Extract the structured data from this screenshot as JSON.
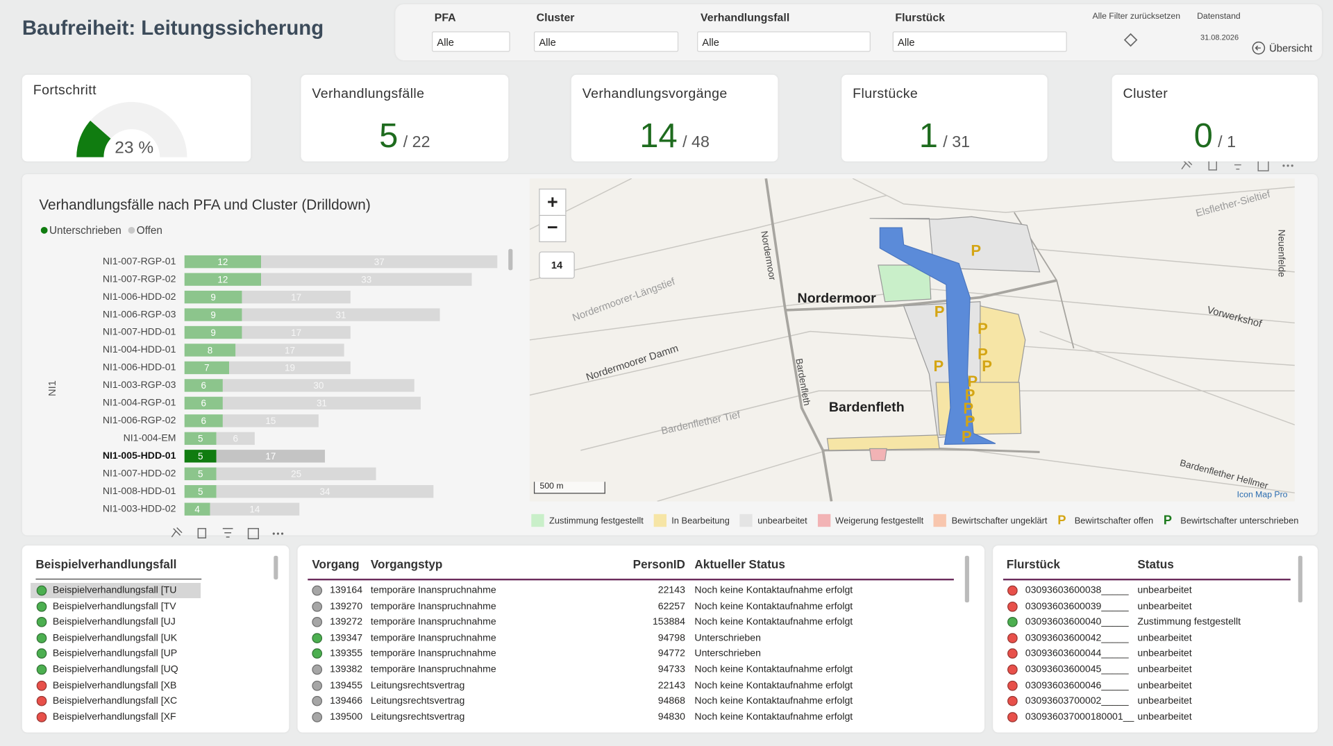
{
  "header": {
    "title": "Baufreiheit: Leitungssicherung"
  },
  "filters": [
    {
      "label": "PFA",
      "value": "Alle"
    },
    {
      "label": "Cluster",
      "value": "Alle"
    },
    {
      "label": "Verhandlungsfall",
      "value": "Alle"
    },
    {
      "label": "Flurstück",
      "value": "Alle"
    }
  ],
  "reset": {
    "label": "Alle Filter zurücksetzen"
  },
  "datenstand": {
    "label": "Datenstand",
    "value": "31.08.2026"
  },
  "overview": {
    "label": "Übersicht"
  },
  "gauge": {
    "title": "Fortschritt",
    "value": 23,
    "value_label": "23 %",
    "min": 0,
    "max": 100,
    "color": "#107c10"
  },
  "kpis": [
    {
      "title": "Verhandlungsfälle",
      "value": "5",
      "total": "/ 22"
    },
    {
      "title": "Verhandlungsvorgänge",
      "value": "14",
      "total": "/ 48"
    },
    {
      "title": "Flurstücke",
      "value": "1",
      "total": "/ 31"
    },
    {
      "title": "Cluster",
      "value": "0",
      "total": "/ 1"
    }
  ],
  "chart_data": {
    "type": "bar",
    "orientation": "horizontal",
    "stacked": true,
    "title": "Verhandlungsfälle nach PFA und Cluster (Drilldown)",
    "y_label": "NI1",
    "categories": [
      "NI1-007-RGP-01",
      "NI1-007-RGP-02",
      "NI1-006-HDD-02",
      "NI1-006-RGP-03",
      "NI1-007-HDD-01",
      "NI1-004-HDD-01",
      "NI1-006-HDD-01",
      "NI1-003-RGP-03",
      "NI1-004-RGP-01",
      "NI1-006-RGP-02",
      "NI1-004-EM",
      "NI1-005-HDD-01",
      "NI1-007-HDD-02",
      "NI1-008-HDD-01",
      "NI1-003-HDD-02"
    ],
    "series": [
      {
        "name": "Unterschrieben",
        "color": "#8cc58c",
        "legend_color": "#107c10",
        "values": [
          12,
          12,
          9,
          9,
          9,
          8,
          7,
          6,
          6,
          6,
          5,
          5,
          5,
          5,
          4
        ]
      },
      {
        "name": "Offen",
        "color": "#d9d9d9",
        "legend_color": "#c8c8c8",
        "values": [
          37,
          33,
          17,
          31,
          17,
          17,
          19,
          30,
          31,
          15,
          6,
          17,
          25,
          34,
          14
        ]
      }
    ],
    "selected_index": 11,
    "selected_colors": [
      "#107c10",
      "#c4c4c4"
    ]
  },
  "map": {
    "zoom_in": "+",
    "zoom_out": "−",
    "zoom": "14",
    "places": [
      "Nordermoor",
      "Bardenfleth",
      "Nordermoorer Damm",
      "Nordermoorer-Längstief",
      "Bardenflether Tief",
      "Elsflether-Sieltief",
      "Vorwerkshof",
      "Neuenfelde",
      "Bardenflether Hellmer",
      "Nordermoor",
      "Bardenfleth"
    ],
    "scale": "500 m",
    "attribution": "Icon Map Pro",
    "legend": [
      {
        "label": "Zustimmung festgestellt",
        "color": "#c9efc9"
      },
      {
        "label": "In Bearbeitung",
        "color": "#f6e5a6"
      },
      {
        "label": "unbearbeitet",
        "color": "#e4e4e4"
      },
      {
        "label": "Weigerung festgestellt",
        "color": "#f2b3b5"
      },
      {
        "label": "Bewirtschafter ungeklärt",
        "color": "#f8c6ae"
      },
      {
        "label": "Bewirtschafter offen",
        "color": "#d4a514",
        "marker": "P"
      },
      {
        "label": "Bewirtschafter unterschrieben",
        "color": "#1e7b1e",
        "marker": "P"
      }
    ]
  },
  "slicer": {
    "title": "Beispielverhandlungsfall",
    "items": [
      {
        "label": "Beispielverhandlungsfall [TU",
        "color": "#4caf50"
      },
      {
        "label": "Beispielverhandlungsfall [TV",
        "color": "#4caf50"
      },
      {
        "label": "Beispielverhandlungsfall [UJ",
        "color": "#4caf50"
      },
      {
        "label": "Beispielverhandlungsfall [UK",
        "color": "#4caf50"
      },
      {
        "label": "Beispielverhandlungsfall [UP",
        "color": "#4caf50"
      },
      {
        "label": "Beispielverhandlungsfall [UQ",
        "color": "#4caf50"
      },
      {
        "label": "Beispielverhandlungsfall [XB",
        "color": "#e8504a"
      },
      {
        "label": "Beispielverhandlungsfall [XC",
        "color": "#e8504a"
      },
      {
        "label": "Beispielverhandlungsfall [XF",
        "color": "#e8504a"
      }
    ]
  },
  "vorgaenge": {
    "columns": [
      "Vorgang",
      "Vorgangstyp",
      "PersonID",
      "Aktueller Status"
    ],
    "rows": [
      [
        "139164",
        "temporäre Inanspruchnahme",
        "22143",
        "Noch keine Kontaktaufnahme erfolgt"
      ],
      [
        "139270",
        "temporäre Inanspruchnahme",
        "62257",
        "Noch keine Kontaktaufnahme erfolgt"
      ],
      [
        "139272",
        "temporäre Inanspruchnahme",
        "153884",
        "Noch keine Kontaktaufnahme erfolgt"
      ],
      [
        "139347",
        "temporäre Inanspruchnahme",
        "94798",
        "Unterschrieben"
      ],
      [
        "139355",
        "temporäre Inanspruchnahme",
        "94772",
        "Unterschrieben"
      ],
      [
        "139382",
        "temporäre Inanspruchnahme",
        "94733",
        "Noch keine Kontaktaufnahme erfolgt"
      ],
      [
        "139455",
        "Leitungsrechtsvertrag",
        "22143",
        "Noch keine Kontaktaufnahme erfolgt"
      ],
      [
        "139466",
        "Leitungsrechtsvertrag",
        "94868",
        "Noch keine Kontaktaufnahme erfolgt"
      ],
      [
        "139500",
        "Leitungsrechtsvertrag",
        "94830",
        "Noch keine Kontaktaufnahme erfolgt"
      ]
    ],
    "dots": [
      "#a6a6a6",
      "#a6a6a6",
      "#a6a6a6",
      "#4caf50",
      "#4caf50",
      "#a6a6a6",
      "#a6a6a6",
      "#a6a6a6",
      "#a6a6a6"
    ]
  },
  "flurstuecke": {
    "columns": [
      "Flurstück",
      "Status"
    ],
    "rows": [
      [
        "03093603600038_____",
        "unbearbeitet"
      ],
      [
        "03093603600039_____",
        "unbearbeitet"
      ],
      [
        "03093603600040_____",
        "Zustimmung festgestellt"
      ],
      [
        "03093603600042_____",
        "unbearbeitet"
      ],
      [
        "03093603600044_____",
        "unbearbeitet"
      ],
      [
        "03093603600045_____",
        "unbearbeitet"
      ],
      [
        "03093603600046_____",
        "unbearbeitet"
      ],
      [
        "03093603700002_____",
        "unbearbeitet"
      ],
      [
        "030936037000180001__",
        "unbearbeitet"
      ]
    ],
    "dots": [
      "#e8504a",
      "#e8504a",
      "#4caf50",
      "#e8504a",
      "#e8504a",
      "#e8504a",
      "#e8504a",
      "#e8504a",
      "#e8504a"
    ]
  }
}
